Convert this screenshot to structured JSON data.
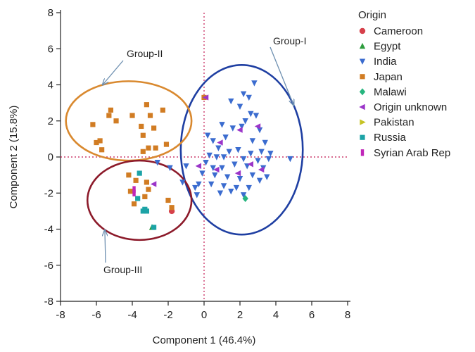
{
  "chart_data": {
    "type": "scatter",
    "xlabel": "Component 1 (46.4%)",
    "ylabel": "Component 2 (15.8%)",
    "xlim": [
      -8,
      8
    ],
    "ylim": [
      -8,
      8
    ],
    "xticks": [
      "-8",
      "-6",
      "-4",
      "-2",
      "0",
      "2",
      "4",
      "6",
      "8"
    ],
    "yticks": [
      "8",
      "6",
      "4",
      "2",
      "0",
      "-2",
      "-4",
      "-6",
      "-8"
    ],
    "reference_lines": {
      "x": 0,
      "y": 0,
      "style": "dotted",
      "color": "#cc3b6b"
    },
    "legend_position": "right",
    "legend_title": "Origin",
    "series": [
      {
        "name": "Cameroon",
        "marker": "circle",
        "color": "#d6404a",
        "points": [
          [
            -1.8,
            -3.0
          ]
        ]
      },
      {
        "name": "Egypt",
        "marker": "triangle-up",
        "color": "#2e9c3e",
        "points": [
          [
            -2.9,
            -3.9
          ]
        ]
      },
      {
        "name": "India",
        "marker": "triangle-down",
        "color": "#3b6ccf",
        "points": [
          [
            2.8,
            4.1
          ],
          [
            2.2,
            3.5
          ],
          [
            2.5,
            3.3
          ],
          [
            1.5,
            3.1
          ],
          [
            2.0,
            2.8
          ],
          [
            2.6,
            2.4
          ],
          [
            2.9,
            2.3
          ],
          [
            2.3,
            2.0
          ],
          [
            1.0,
            1.8
          ],
          [
            1.6,
            1.6
          ],
          [
            2.1,
            1.7
          ],
          [
            3.1,
            1.5
          ],
          [
            0.2,
            1.2
          ],
          [
            1.2,
            1.1
          ],
          [
            0.5,
            0.9
          ],
          [
            2.7,
            0.9
          ],
          [
            3.4,
            0.8
          ],
          [
            0.8,
            0.5
          ],
          [
            1.4,
            0.3
          ],
          [
            1.9,
            0.4
          ],
          [
            2.6,
            0.2
          ],
          [
            3.2,
            0.3
          ],
          [
            3.7,
            0.2
          ],
          [
            4.8,
            -0.1
          ],
          [
            0.3,
            0.1
          ],
          [
            0.7,
            0.0
          ],
          [
            1.1,
            0.0
          ],
          [
            2.2,
            -0.1
          ],
          [
            3.0,
            -0.2
          ],
          [
            3.6,
            -0.1
          ],
          [
            0.1,
            -0.3
          ],
          [
            0.5,
            -0.6
          ],
          [
            1.0,
            -0.6
          ],
          [
            1.7,
            -0.4
          ],
          [
            2.4,
            -0.5
          ],
          [
            3.3,
            -0.6
          ],
          [
            -0.1,
            -0.9
          ],
          [
            0.6,
            -1.0
          ],
          [
            1.3,
            -1.1
          ],
          [
            2.0,
            -1.2
          ],
          [
            2.7,
            -1.0
          ],
          [
            3.1,
            -1.3
          ],
          [
            3.5,
            -1.1
          ],
          [
            -0.3,
            -1.5
          ],
          [
            0.4,
            -1.5
          ],
          [
            1.1,
            -1.6
          ],
          [
            1.8,
            -1.7
          ],
          [
            2.5,
            -1.7
          ],
          [
            -0.5,
            -1.7
          ],
          [
            0.9,
            -2.0
          ],
          [
            2.2,
            -2.1
          ],
          [
            -1.2,
            -1.4
          ],
          [
            -1.9,
            -0.6
          ],
          [
            -2.6,
            -0.3
          ],
          [
            -1.0,
            -0.5
          ],
          [
            -0.4,
            -2.1
          ],
          [
            1.5,
            -1.9
          ]
        ]
      },
      {
        "name": "Japan",
        "marker": "square",
        "color": "#d17c23",
        "points": [
          [
            -4.9,
            2.0
          ],
          [
            -5.3,
            2.3
          ],
          [
            -5.2,
            2.6
          ],
          [
            -6.2,
            1.8
          ],
          [
            -4.0,
            2.3
          ],
          [
            -3.2,
            2.9
          ],
          [
            -2.3,
            2.6
          ],
          [
            -3.0,
            2.3
          ],
          [
            -2.8,
            1.6
          ],
          [
            -3.5,
            1.7
          ],
          [
            -3.4,
            1.2
          ],
          [
            -6.0,
            0.8
          ],
          [
            -5.7,
            0.4
          ],
          [
            -5.8,
            0.9
          ],
          [
            -2.1,
            0.7
          ],
          [
            -3.4,
            0.3
          ],
          [
            -3.1,
            0.5
          ],
          [
            -2.7,
            0.5
          ],
          [
            -4.2,
            -1.0
          ],
          [
            -3.8,
            -1.3
          ],
          [
            -3.2,
            -1.4
          ],
          [
            -4.1,
            -1.9
          ],
          [
            -3.9,
            -2.6
          ],
          [
            -2.0,
            -2.4
          ],
          [
            -1.8,
            -2.8
          ],
          [
            -3.3,
            -2.2
          ],
          [
            -3.1,
            -1.8
          ],
          [
            0.0,
            3.3
          ]
        ]
      },
      {
        "name": "Malawi",
        "marker": "diamond",
        "color": "#26b57e",
        "points": [
          [
            2.3,
            -2.3
          ]
        ]
      },
      {
        "name": "Origin unknown",
        "marker": "triangle-left",
        "color": "#9b35c9",
        "points": [
          [
            0.1,
            3.3
          ],
          [
            2.0,
            1.5
          ],
          [
            3.0,
            1.7
          ],
          [
            0.9,
            0.8
          ],
          [
            -2.8,
            -1.5
          ],
          [
            1.9,
            -0.9
          ],
          [
            0.7,
            -0.7
          ],
          [
            -0.3,
            -0.5
          ],
          [
            2.6,
            -0.4
          ],
          [
            3.2,
            -0.7
          ]
        ]
      },
      {
        "name": "Pakistan",
        "marker": "triangle-right",
        "color": "#c6c324",
        "points": []
      },
      {
        "name": "Russia",
        "marker": "square",
        "color": "#1ca3a6",
        "points": [
          [
            -3.6,
            -0.9
          ],
          [
            -3.4,
            -3.0
          ],
          [
            -3.2,
            -3.0
          ],
          [
            -3.3,
            -2.9
          ],
          [
            -2.8,
            -3.9
          ],
          [
            -3.7,
            -2.3
          ]
        ]
      },
      {
        "name": "Syrian Arab Rep",
        "marker": "bar",
        "color": "#c026b8",
        "points": [
          [
            -3.9,
            -1.8
          ],
          [
            -3.9,
            -2.0
          ]
        ]
      }
    ],
    "groups": [
      {
        "label": "Group-I",
        "color": "#1f3fa2",
        "cx": 2.1,
        "cy": 0.4,
        "rx": 3.4,
        "ry": 4.7
      },
      {
        "label": "Group-II",
        "color": "#d9892f",
        "cx": -4.2,
        "cy": 2.0,
        "rx": 3.5,
        "ry": 2.2
      },
      {
        "label": "Group-III",
        "color": "#8c1a2a",
        "cx": -3.6,
        "cy": -2.4,
        "rx": 2.9,
        "ry": 2.2
      }
    ]
  }
}
